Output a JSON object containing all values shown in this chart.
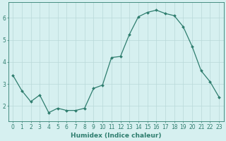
{
  "x": [
    0,
    1,
    2,
    3,
    4,
    5,
    6,
    7,
    8,
    9,
    10,
    11,
    12,
    13,
    14,
    15,
    16,
    17,
    18,
    19,
    20,
    21,
    22,
    23
  ],
  "y": [
    3.4,
    2.7,
    2.2,
    2.5,
    1.7,
    1.9,
    1.8,
    1.8,
    1.9,
    2.8,
    2.95,
    4.2,
    4.25,
    5.25,
    6.05,
    6.25,
    6.35,
    6.2,
    6.1,
    5.6,
    4.7,
    3.6,
    3.1,
    2.4
  ],
  "xlabel": "Humidex (Indice chaleur)",
  "line_color": "#2e7d6e",
  "marker": "D",
  "marker_size": 2.0,
  "background_color": "#d6f0f0",
  "grid_color": "#b8d8d8",
  "ylim": [
    1.3,
    6.7
  ],
  "xlim": [
    -0.5,
    23.5
  ],
  "yticks": [
    2,
    3,
    4,
    5,
    6
  ],
  "xticks": [
    0,
    1,
    2,
    3,
    4,
    5,
    6,
    7,
    8,
    9,
    10,
    11,
    12,
    13,
    14,
    15,
    16,
    17,
    18,
    19,
    20,
    21,
    22,
    23
  ],
  "xlabel_fontsize": 6.5,
  "tick_fontsize": 5.5,
  "linewidth": 0.9
}
